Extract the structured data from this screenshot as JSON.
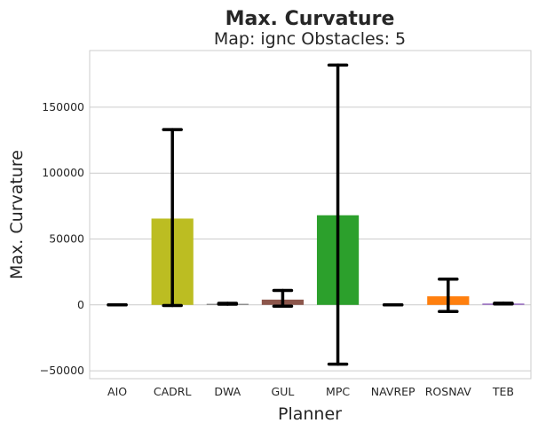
{
  "chart_data": {
    "type": "bar",
    "title": "Max. Curvature",
    "subtitle": "Map: ignc Obstacles: 5",
    "xlabel": "Planner",
    "ylabel": "Max. Curvature",
    "categories": [
      "AIO",
      "CADRL",
      "DWA",
      "GUL",
      "MPC",
      "NAVREP",
      "ROSNAV",
      "TEB"
    ],
    "values": [
      0,
      65500,
      800,
      4000,
      68000,
      0,
      6500,
      1000
    ],
    "error_low": [
      0,
      -500,
      500,
      -1000,
      -45000,
      0,
      -5000,
      700
    ],
    "error_high": [
      0,
      133000,
      1200,
      11000,
      182000,
      0,
      19500,
      1300
    ],
    "colors": [
      "#1f77b4",
      "#bcbd22",
      "#7f7f7f",
      "#8c564b",
      "#2ca02c",
      "#17becf",
      "#ff7f0e",
      "#9467bd"
    ],
    "yticks": [
      -50000,
      0,
      50000,
      100000,
      150000
    ],
    "ytick_labels": [
      "−50000",
      "0",
      "50000",
      "100000",
      "150000"
    ],
    "ylim": [
      -56000,
      193000
    ],
    "grid": true,
    "legend": "none"
  }
}
